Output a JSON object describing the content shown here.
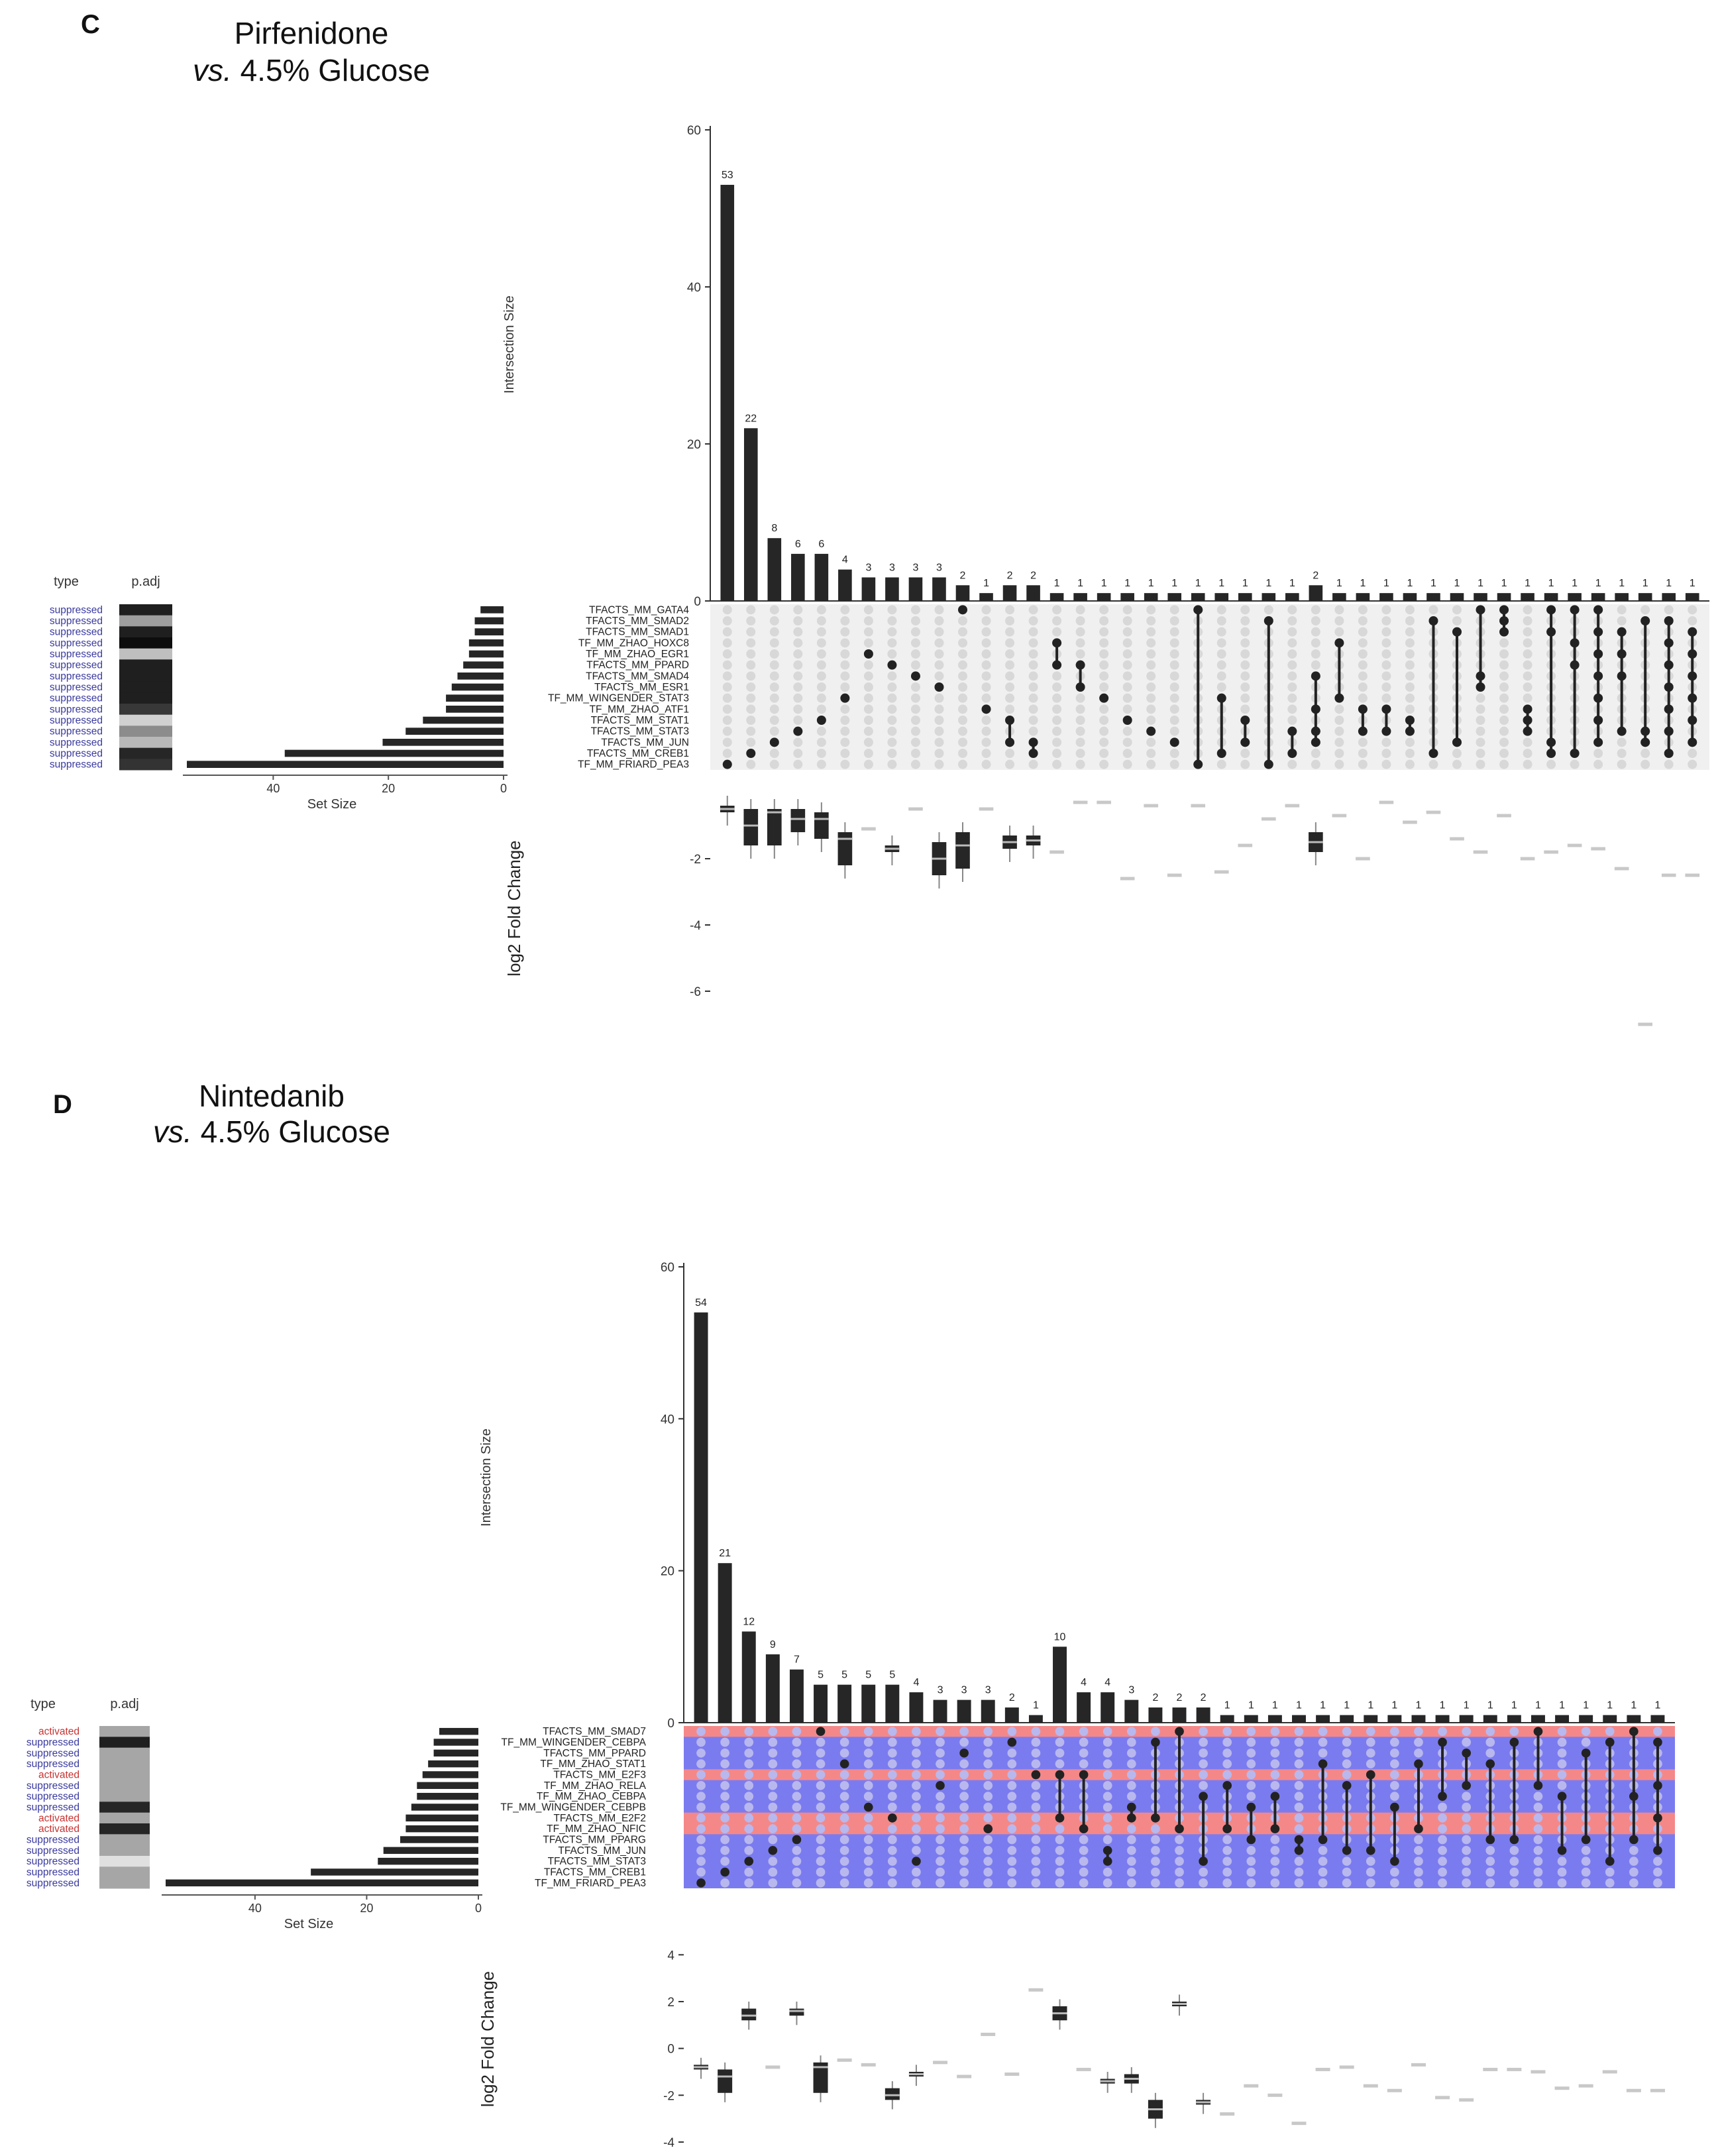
{
  "colors": {
    "bar": "#262626",
    "dot_active": "#222222",
    "dot_inactive": "#d8d8d8",
    "matrix_bg_c": "#f0f0f0",
    "matrix_bg_d": "#7b7bf0",
    "matrix_row_activated_d": "#f48888",
    "suppressed": "#3a3aa0",
    "activated": "#c83232"
  },
  "chart_data": [
    {
      "type": "upset",
      "panel_label": "C",
      "title_line1": "Pirfenidone",
      "title_vs": "vs.",
      "title_rest": " 4.5% Glucose",
      "ylabel": "Intersection Size",
      "ylim": [
        0,
        60
      ],
      "yticks": [
        "0",
        "20",
        "40",
        "60"
      ],
      "intersection_sizes": [
        53,
        22,
        8,
        6,
        6,
        4,
        3,
        3,
        3,
        3,
        2,
        1,
        2,
        2,
        1,
        1,
        1,
        1,
        1,
        1,
        1,
        1,
        1,
        1,
        1,
        2,
        1,
        1,
        1,
        1,
        1,
        1,
        1,
        1,
        1,
        1,
        1,
        1,
        1,
        1,
        1,
        1
      ],
      "sets": [
        "TFACTS_MM_GATA4",
        "TFACTS_MM_SMAD2",
        "TFACTS_MM_SMAD1",
        "TF_MM_ZHAO_HOXC8",
        "TF_MM_ZHAO_EGR1",
        "TFACTS_MM_PPARD",
        "TFACTS_MM_SMAD4",
        "TFACTS_MM_ESR1",
        "TF_MM_WINGENDER_STAT3",
        "TF_MM_ZHAO_ATF1",
        "TFACTS_MM_STAT1",
        "TFACTS_MM_STAT3",
        "TFACTS_MM_JUN",
        "TFACTS_MM_CREB1",
        "TF_MM_FRIARD_PEA3"
      ],
      "set_sizes": [
        4,
        5,
        5,
        6,
        6,
        7,
        8,
        9,
        10,
        10,
        14,
        17,
        21,
        38,
        55
      ],
      "set_size_axis": {
        "label": "Set Size",
        "ticks": [
          "40",
          "20",
          "0"
        ],
        "max": 55
      },
      "heatmap": {
        "headers": [
          "type",
          "p.adj"
        ],
        "types": [
          "suppressed",
          "suppressed",
          "suppressed",
          "suppressed",
          "suppressed",
          "suppressed",
          "suppressed",
          "suppressed",
          "suppressed",
          "suppressed",
          "suppressed",
          "suppressed",
          "suppressed",
          "suppressed",
          "suppressed"
        ],
        "padj_gray": [
          0.12,
          0.62,
          0.12,
          0.05,
          0.75,
          0.12,
          0.12,
          0.12,
          0.12,
          0.22,
          0.82,
          0.55,
          0.72,
          0.15,
          0.2
        ]
      },
      "membership": [
        [
          14
        ],
        [
          13
        ],
        [
          12
        ],
        [
          11
        ],
        [
          10
        ],
        [
          8
        ],
        [
          4
        ],
        [
          5
        ],
        [
          6
        ],
        [
          7
        ],
        [
          0
        ],
        [
          9
        ],
        [
          10,
          12
        ],
        [
          12,
          13
        ],
        [
          3,
          5
        ],
        [
          5,
          7
        ],
        [
          8
        ],
        [
          10
        ],
        [
          11
        ],
        [
          12
        ],
        [
          0,
          14
        ],
        [
          8,
          13
        ],
        [
          10,
          12
        ],
        [
          1,
          14
        ],
        [
          11,
          13
        ],
        [
          6,
          9,
          11,
          12
        ],
        [
          3,
          8
        ],
        [
          9,
          11
        ],
        [
          9,
          11
        ],
        [
          10,
          11
        ],
        [
          1,
          13
        ],
        [
          2,
          12
        ],
        [
          0,
          6,
          7
        ],
        [
          0,
          1,
          2
        ],
        [
          9,
          10,
          11
        ],
        [
          0,
          2,
          12,
          13
        ],
        [
          0,
          3,
          5,
          13
        ],
        [
          0,
          2,
          4,
          6,
          8,
          10,
          12
        ],
        [
          2,
          4,
          6,
          11
        ],
        [
          1,
          11,
          12
        ],
        [
          1,
          3,
          5,
          7,
          9,
          11,
          13
        ],
        [
          2,
          4,
          6,
          8,
          10,
          12
        ]
      ],
      "fold_change": {
        "ylabel": "log2 Fold Change",
        "yticks": [
          "-2",
          "-4",
          "-6"
        ],
        "ylim": [
          -7,
          0
        ],
        "boxes": [
          [
            -0.4,
            -0.6,
            -0.5
          ],
          [
            -0.5,
            -1.6,
            -1.0
          ],
          [
            -0.5,
            -1.6,
            -0.6
          ],
          [
            -0.5,
            -1.2,
            -0.8
          ],
          [
            -0.6,
            -1.4,
            -0.8
          ],
          [
            -1.2,
            -2.2,
            -1.4
          ],
          [
            -1.1,
            -1.1,
            -1.1
          ],
          [
            -1.6,
            -1.8,
            -1.7
          ],
          [
            -0.5,
            -0.5,
            -0.5
          ],
          [
            -1.5,
            -2.5,
            -2.0
          ],
          [
            -1.2,
            -2.3,
            -1.6
          ],
          [
            -0.5,
            -0.5,
            -0.5
          ],
          [
            -1.3,
            -1.7,
            -1.5
          ],
          [
            -1.3,
            -1.6,
            -1.45
          ],
          [
            -1.8,
            -1.8,
            -1.8
          ],
          [
            -0.3,
            -0.3,
            -0.3
          ],
          [
            -0.3,
            -0.3,
            -0.3
          ],
          [
            -2.6,
            -2.6,
            -2.6
          ],
          [
            -0.4,
            -0.4,
            -0.4
          ],
          [
            -2.5,
            -2.5,
            -2.5
          ],
          [
            -0.4,
            -0.4,
            -0.4
          ],
          [
            -2.4,
            -2.4,
            -2.4
          ],
          [
            -1.6,
            -1.6,
            -1.6
          ],
          [
            -0.8,
            -0.8,
            -0.8
          ],
          [
            -0.4,
            -0.4,
            -0.4
          ],
          [
            -1.2,
            -1.8,
            -1.5
          ],
          [
            -0.7,
            -0.7,
            -0.7
          ],
          [
            -2.0,
            -2.0,
            -2.0
          ],
          [
            -0.3,
            -0.3,
            -0.3
          ],
          [
            -0.9,
            -0.9,
            -0.9
          ],
          [
            -0.6,
            -0.6,
            -0.6
          ],
          [
            -1.4,
            -1.4,
            -1.4
          ],
          [
            -1.8,
            -1.8,
            -1.8
          ],
          [
            -0.7,
            -0.7,
            -0.7
          ],
          [
            -2.0,
            -2.0,
            -2.0
          ],
          [
            -1.8,
            -1.8,
            -1.8
          ],
          [
            -1.6,
            -1.6,
            -1.6
          ],
          [
            -1.7,
            -1.7,
            -1.7
          ],
          [
            -2.3,
            -2.3,
            -2.3
          ],
          [
            -7.0,
            -7.0,
            -7.0
          ],
          [
            -2.5,
            -2.5,
            -2.5
          ],
          [
            -2.5,
            -2.5,
            -2.5
          ]
        ]
      }
    },
    {
      "type": "upset",
      "panel_label": "D",
      "title_line1": "Nintedanib",
      "title_vs": "vs.",
      "title_rest": " 4.5% Glucose",
      "ylabel": "Intersection Size",
      "ylim": [
        0,
        60
      ],
      "yticks": [
        "0",
        "20",
        "40",
        "60"
      ],
      "intersection_sizes": [
        54,
        21,
        12,
        9,
        7,
        5,
        5,
        5,
        5,
        4,
        3,
        3,
        3,
        2,
        1,
        10,
        4,
        4,
        3,
        2,
        2,
        2,
        1,
        1,
        1,
        1,
        1,
        1,
        1,
        1,
        1,
        1,
        1,
        1,
        1,
        1,
        1,
        1,
        1,
        1,
        1
      ],
      "sets": [
        "TFACTS_MM_SMAD7",
        "TF_MM_WINGENDER_CEBPA",
        "TFACTS_MM_PPARD",
        "TF_MM_ZHAO_STAT1",
        "TFACTS_MM_E2F3",
        "TF_MM_ZHAO_RELA",
        "TF_MM_ZHAO_CEBPA",
        "TF_MM_WINGENDER_CEBPB",
        "TFACTS_MM_E2F2",
        "TF_MM_ZHAO_NFIC",
        "TFACTS_MM_PPARG",
        "TFACTS_MM_JUN",
        "TFACTS_MM_STAT3",
        "TFACTS_MM_CREB1",
        "TF_MM_FRIARD_PEA3"
      ],
      "set_sizes": [
        7,
        8,
        8,
        9,
        10,
        11,
        11,
        12,
        13,
        13,
        14,
        17,
        18,
        30,
        56
      ],
      "set_size_axis": {
        "label": "Set Size",
        "ticks": [
          "40",
          "20",
          "0"
        ],
        "max": 56
      },
      "heatmap": {
        "headers": [
          "type",
          "p.adj"
        ],
        "types": [
          "activated",
          "suppressed",
          "suppressed",
          "suppressed",
          "activated",
          "suppressed",
          "suppressed",
          "suppressed",
          "activated",
          "activated",
          "suppressed",
          "suppressed",
          "suppressed",
          "suppressed",
          "suppressed"
        ],
        "padj_gray": [
          0.65,
          0.12,
          0.65,
          0.65,
          0.65,
          0.65,
          0.65,
          0.15,
          0.65,
          0.15,
          0.65,
          0.65,
          0.88,
          0.65,
          0.65
        ]
      },
      "membership": [
        [
          14
        ],
        [
          13
        ],
        [
          12
        ],
        [
          11
        ],
        [
          10
        ],
        [
          0
        ],
        [
          3
        ],
        [
          7
        ],
        [
          8
        ],
        [
          12
        ],
        [
          5
        ],
        [
          2
        ],
        [
          9
        ],
        [
          1
        ],
        [
          4
        ],
        [
          4,
          8
        ],
        [
          4,
          9
        ],
        [
          11,
          12
        ],
        [
          7,
          8
        ],
        [
          1,
          8
        ],
        [
          0,
          9
        ],
        [
          6,
          12
        ],
        [
          5,
          9
        ],
        [
          7,
          10
        ],
        [
          6,
          9
        ],
        [
          10,
          11
        ],
        [
          3,
          10
        ],
        [
          5,
          11
        ],
        [
          4,
          11
        ],
        [
          7,
          12
        ],
        [
          3,
          9
        ],
        [
          1,
          6
        ],
        [
          2,
          5
        ],
        [
          3,
          10
        ],
        [
          1,
          10
        ],
        [
          0,
          5
        ],
        [
          6,
          11
        ],
        [
          2,
          10
        ],
        [
          1,
          12
        ],
        [
          0,
          6,
          10
        ],
        [
          1,
          5,
          8,
          11
        ]
      ],
      "fold_change": {
        "ylabel": "log2 Fold Change",
        "yticks": [
          "4",
          "2",
          "0",
          "-2",
          "-4"
        ],
        "ylim": [
          -4.2,
          5
        ],
        "boxes": [
          [
            -0.7,
            -0.9,
            -0.8
          ],
          [
            -0.9,
            -1.9,
            -1.2
          ],
          [
            1.7,
            1.2,
            1.4
          ],
          [
            -0.8,
            -0.8,
            -0.8
          ],
          [
            1.7,
            1.4,
            1.6
          ],
          [
            -0.6,
            -1.9,
            -0.8
          ],
          [
            -0.5,
            -0.5,
            -0.5
          ],
          [
            -0.7,
            -0.7,
            -0.7
          ],
          [
            -1.7,
            -2.2,
            -2.0
          ],
          [
            -1.0,
            -1.2,
            -1.1
          ],
          [
            -0.6,
            -0.6,
            -0.6
          ],
          [
            -1.2,
            -1.2,
            -1.2
          ],
          [
            0.6,
            0.6,
            0.6
          ],
          [
            -1.1,
            -1.1,
            -1.1
          ],
          [
            2.5,
            2.5,
            2.5
          ],
          [
            1.8,
            1.2,
            1.5
          ],
          [
            -0.9,
            -0.9,
            -0.9
          ],
          [
            -1.3,
            -1.5,
            -1.4
          ],
          [
            -1.1,
            -1.5,
            -1.3
          ],
          [
            -2.2,
            -3.0,
            -2.6
          ],
          [
            2.0,
            1.8,
            1.9
          ],
          [
            -2.2,
            -2.4,
            -2.3
          ],
          [
            -2.8,
            -2.8,
            -2.8
          ],
          [
            -1.6,
            -1.6,
            -1.6
          ],
          [
            -2.0,
            -2.0,
            -2.0
          ],
          [
            -3.2,
            -3.2,
            -3.2
          ],
          [
            -0.9,
            -0.9,
            -0.9
          ],
          [
            -0.8,
            -0.8,
            -0.8
          ],
          [
            -1.6,
            -1.6,
            -1.6
          ],
          [
            -1.8,
            -1.8,
            -1.8
          ],
          [
            -0.7,
            -0.7,
            -0.7
          ],
          [
            -2.1,
            -2.1,
            -2.1
          ],
          [
            -2.2,
            -2.2,
            -2.2
          ],
          [
            -0.9,
            -0.9,
            -0.9
          ],
          [
            -0.9,
            -0.9,
            -0.9
          ],
          [
            -1.0,
            -1.0,
            -1.0
          ],
          [
            -1.7,
            -1.7,
            -1.7
          ],
          [
            -1.6,
            -1.6,
            -1.6
          ],
          [
            -1.0,
            -1.0,
            -1.0
          ],
          [
            -1.8,
            -1.8,
            -1.8
          ],
          [
            -1.8,
            -1.8,
            -1.8
          ]
        ]
      }
    }
  ]
}
